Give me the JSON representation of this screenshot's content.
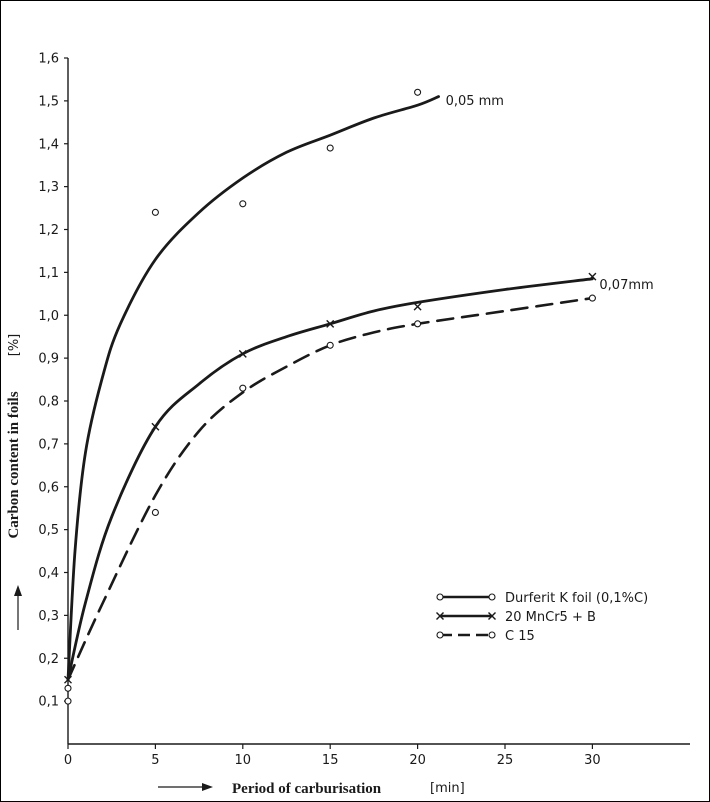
{
  "chart_data": {
    "type": "line",
    "title": "",
    "xlabel": "Period of carburisation",
    "xunit": "[min]",
    "ylabel": "Carbon content in foils",
    "yunit": "[%]",
    "xlim": [
      0,
      35
    ],
    "ylim": [
      0,
      1.6
    ],
    "xticks": [
      0,
      5,
      10,
      15,
      20,
      25,
      30
    ],
    "yticks": [
      0.1,
      0.2,
      0.3,
      0.4,
      0.5,
      0.6,
      0.7,
      0.8,
      0.9,
      1.0,
      1.1,
      1.2,
      1.3,
      1.4,
      1.5,
      1.6
    ],
    "ytick_labels": [
      "0,1",
      "0,2",
      "0,3",
      "0,4",
      "0,5",
      "0,6",
      "0,7",
      "0,8",
      "0,9",
      "1,0",
      "1,1",
      "1,2",
      "1,3",
      "1,4",
      "1,5",
      "1,6"
    ],
    "xtick_labels": [
      "0",
      "5",
      "10",
      "15",
      "20",
      "25",
      "30"
    ],
    "grid": false,
    "legend_position": "bottom-right",
    "series": [
      {
        "name": "Durferit K foil (0,1%C)",
        "marker": "circle",
        "dash": "solid",
        "points": [
          [
            0,
            0.13
          ],
          [
            5,
            1.24
          ],
          [
            10,
            1.26
          ],
          [
            15,
            1.39
          ],
          [
            20,
            1.52
          ]
        ],
        "curve": [
          [
            0,
            0.15
          ],
          [
            0.4,
            0.45
          ],
          [
            1,
            0.68
          ],
          [
            2,
            0.86
          ],
          [
            3,
            0.98
          ],
          [
            5,
            1.13
          ],
          [
            7.5,
            1.24
          ],
          [
            10,
            1.32
          ],
          [
            12.5,
            1.38
          ],
          [
            15,
            1.42
          ],
          [
            17.5,
            1.46
          ],
          [
            20,
            1.49
          ],
          [
            21.2,
            1.51
          ]
        ],
        "annotation": "0,05 mm"
      },
      {
        "name": "20 MnCr5 + B",
        "marker": "x",
        "dash": "solid",
        "points": [
          [
            0,
            0.15
          ],
          [
            5,
            0.74
          ],
          [
            10,
            0.91
          ],
          [
            15,
            0.98
          ],
          [
            20,
            1.02
          ],
          [
            30,
            1.09
          ]
        ],
        "curve": [
          [
            0,
            0.15
          ],
          [
            1,
            0.33
          ],
          [
            2.5,
            0.53
          ],
          [
            5,
            0.74
          ],
          [
            7.5,
            0.84
          ],
          [
            10,
            0.91
          ],
          [
            12.5,
            0.95
          ],
          [
            15,
            0.98
          ],
          [
            17.5,
            1.01
          ],
          [
            20,
            1.03
          ],
          [
            25,
            1.06
          ],
          [
            30,
            1.085
          ]
        ],
        "annotation": "0,07mm"
      },
      {
        "name": "C 15",
        "marker": "circle",
        "dash": "dashed",
        "points": [
          [
            0,
            0.1
          ],
          [
            5,
            0.54
          ],
          [
            10,
            0.83
          ],
          [
            15,
            0.93
          ],
          [
            20,
            0.98
          ],
          [
            30,
            1.04
          ]
        ],
        "curve": [
          [
            0,
            0.15
          ],
          [
            2,
            0.33
          ],
          [
            5,
            0.58
          ],
          [
            7.5,
            0.73
          ],
          [
            10,
            0.82
          ],
          [
            12.5,
            0.88
          ],
          [
            15,
            0.93
          ],
          [
            17.5,
            0.96
          ],
          [
            20,
            0.98
          ],
          [
            25,
            1.01
          ],
          [
            30,
            1.04
          ]
        ]
      }
    ]
  }
}
